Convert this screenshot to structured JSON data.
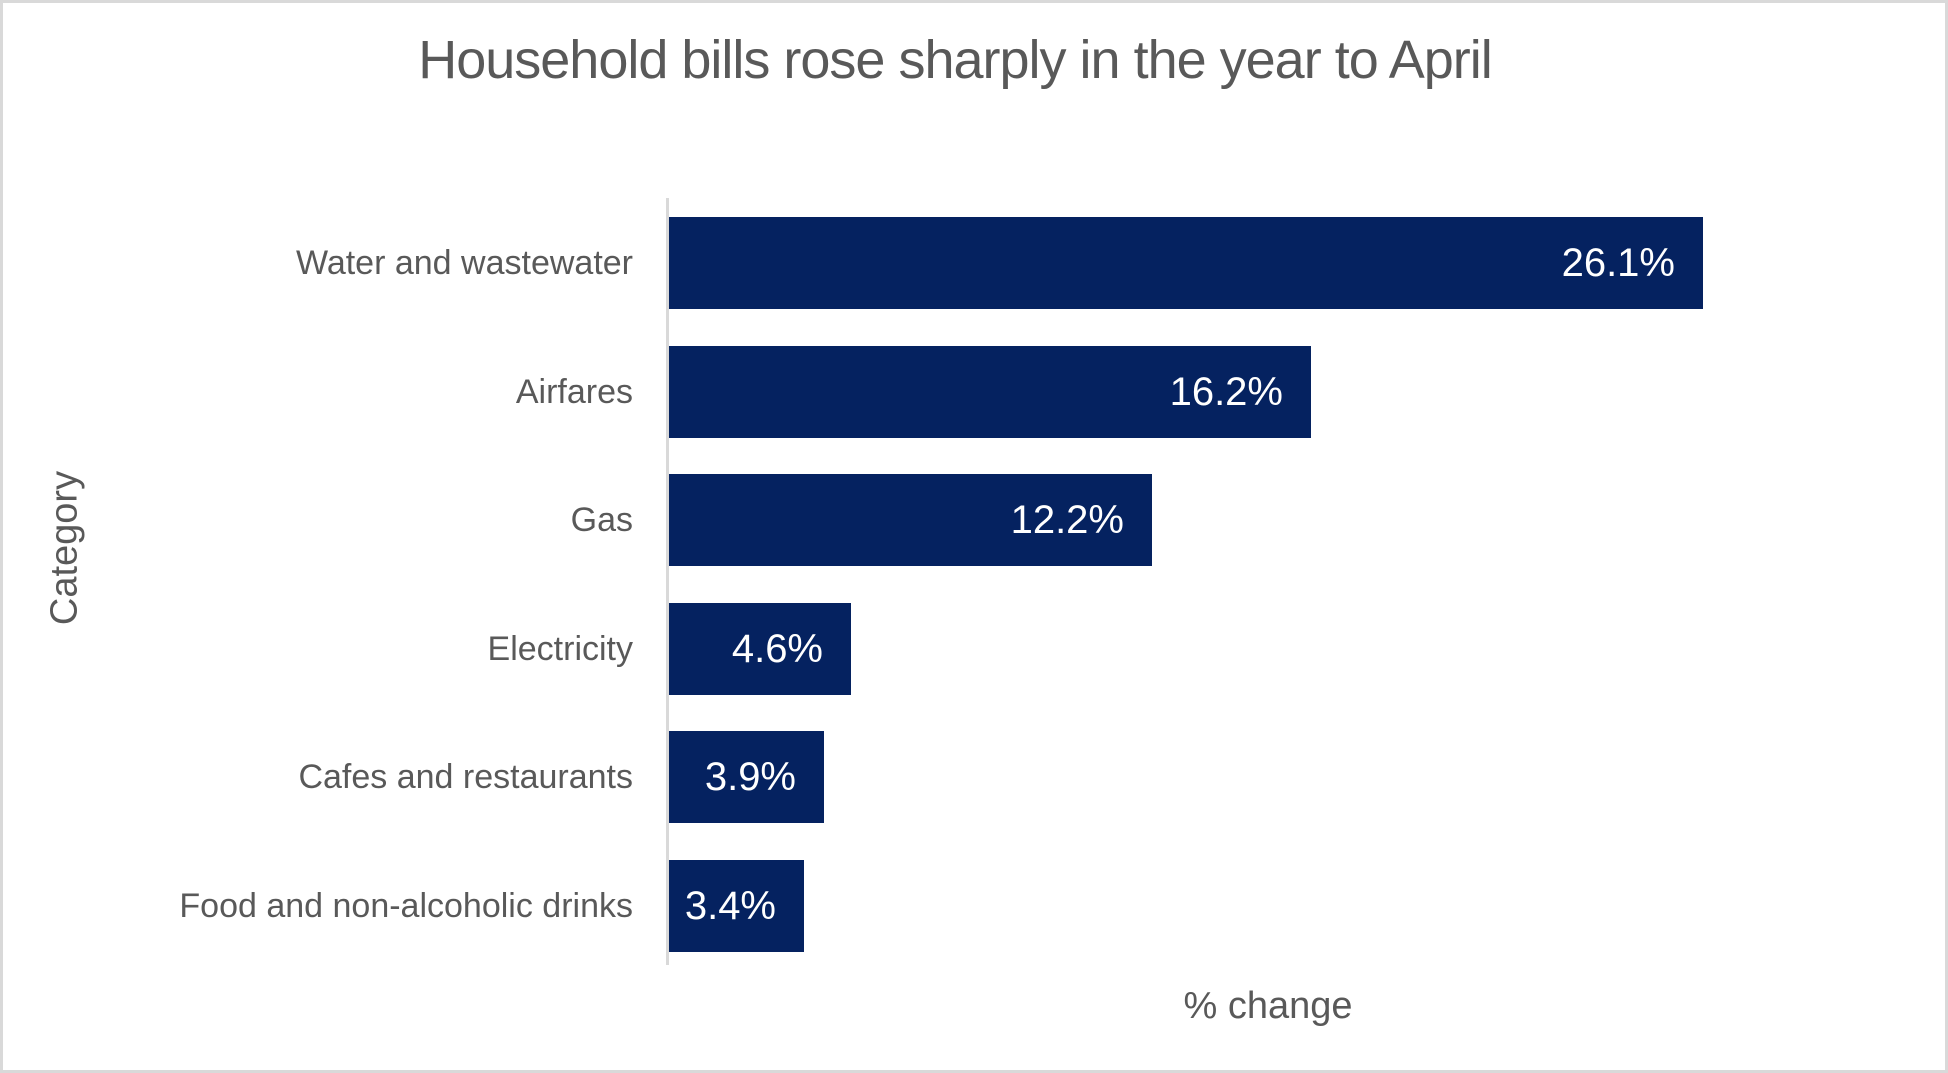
{
  "frame": {
    "background_color": "#ffffff",
    "border_color": "#d9d9d9"
  },
  "chart_data": {
    "type": "bar",
    "orientation": "horizontal",
    "title": "Household bills rose sharply in the year to April",
    "xlabel": "% change",
    "ylabel": "Category",
    "categories": [
      "Water and wastewater",
      "Airfares",
      "Gas",
      "Electricity",
      "Cafes and restaurants",
      "Food and non-alcoholic drinks"
    ],
    "values": [
      26.1,
      16.2,
      12.2,
      4.6,
      3.9,
      3.4
    ],
    "value_labels": [
      "26.1%",
      "16.2%",
      "12.2%",
      "4.6%",
      "3.9%",
      "3.4%"
    ],
    "xlim": [
      0,
      30
    ],
    "grid": false,
    "legend": false,
    "bar_color": "#052260",
    "value_label_color": "#ffffff",
    "text_color": "#595959",
    "axis_line_color": "#d9d9d9"
  }
}
